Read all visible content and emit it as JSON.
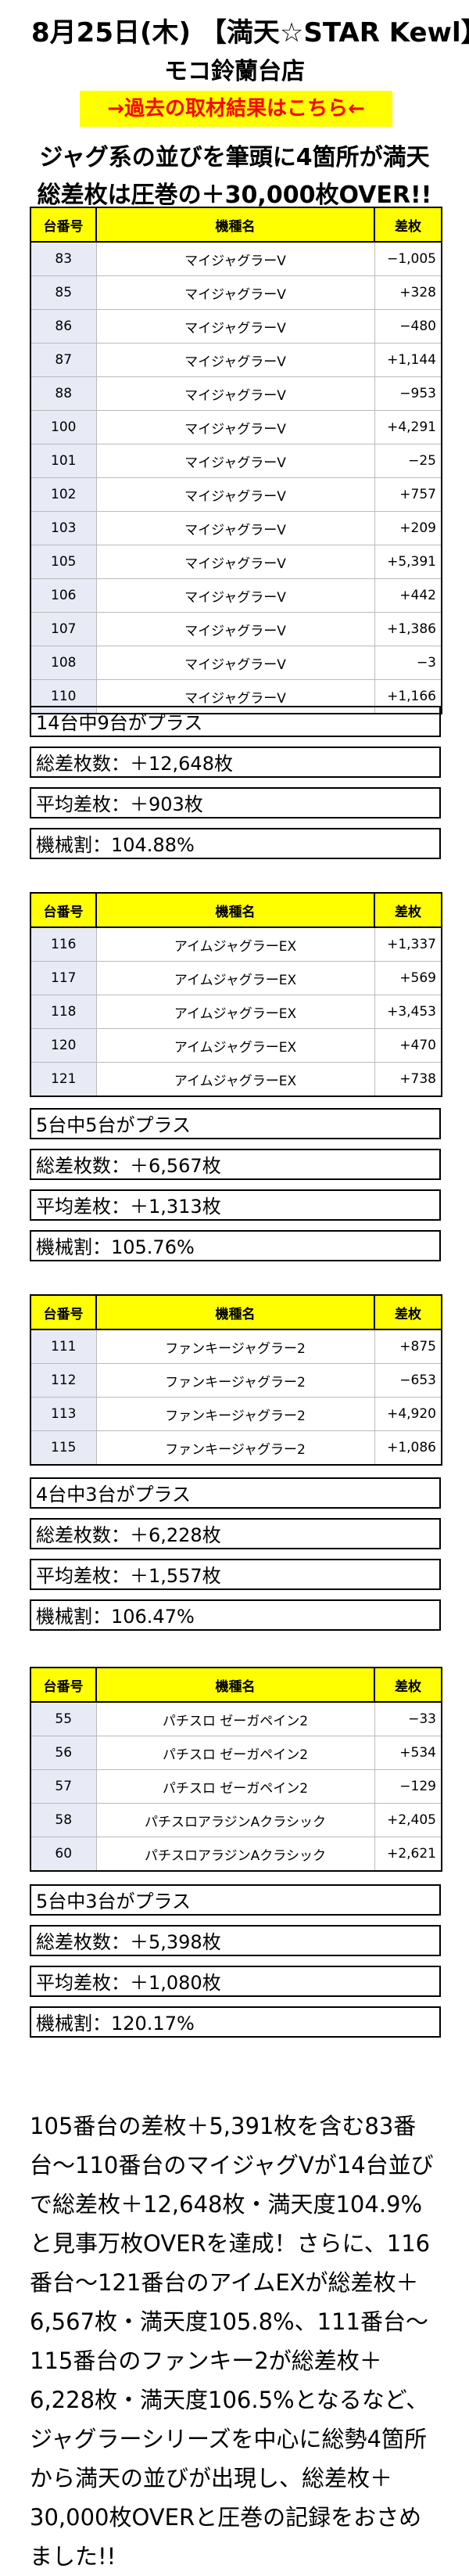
{
  "header": {
    "title": "8月25日(木) 【満天☆STAR Kewl】",
    "store": "モコ鈴蘭台店",
    "link": "→過去の取材結果はこちら←"
  },
  "lead": {
    "line1": "ジャグ系の並びを筆頭に4箇所が満天",
    "line2": "総差枚は圧巻の＋30,000枚OVER!!"
  },
  "column_headers": {
    "no": "台番号",
    "model": "機種名",
    "diff": "差枚"
  },
  "tables": [
    {
      "rows": [
        {
          "no": "83",
          "model": "マイジャグラーV",
          "diff": "−1,005"
        },
        {
          "no": "85",
          "model": "マイジャグラーV",
          "diff": "+328"
        },
        {
          "no": "86",
          "model": "マイジャグラーV",
          "diff": "−480"
        },
        {
          "no": "87",
          "model": "マイジャグラーV",
          "diff": "+1,144"
        },
        {
          "no": "88",
          "model": "マイジャグラーV",
          "diff": "−953"
        },
        {
          "no": "100",
          "model": "マイジャグラーV",
          "diff": "+4,291"
        },
        {
          "no": "101",
          "model": "マイジャグラーV",
          "diff": "−25"
        },
        {
          "no": "102",
          "model": "マイジャグラーV",
          "diff": "+757"
        },
        {
          "no": "103",
          "model": "マイジャグラーV",
          "diff": "+209"
        },
        {
          "no": "105",
          "model": "マイジャグラーV",
          "diff": "+5,391"
        },
        {
          "no": "106",
          "model": "マイジャグラーV",
          "diff": "+442"
        },
        {
          "no": "107",
          "model": "マイジャグラーV",
          "diff": "+1,386"
        },
        {
          "no": "108",
          "model": "マイジャグラーV",
          "diff": "−3"
        },
        {
          "no": "110",
          "model": "マイジャグラーV",
          "diff": "+1,166"
        }
      ],
      "stats": [
        "14台中9台がプラス",
        "総差枚数：＋12,648枚",
        "平均差枚：＋903枚",
        "機械割：104.88%"
      ]
    },
    {
      "rows": [
        {
          "no": "116",
          "model": "アイムジャグラーEX",
          "diff": "+1,337"
        },
        {
          "no": "117",
          "model": "アイムジャグラーEX",
          "diff": "+569"
        },
        {
          "no": "118",
          "model": "アイムジャグラーEX",
          "diff": "+3,453"
        },
        {
          "no": "120",
          "model": "アイムジャグラーEX",
          "diff": "+470"
        },
        {
          "no": "121",
          "model": "アイムジャグラーEX",
          "diff": "+738"
        }
      ],
      "stats": [
        "5台中5台がプラス",
        "総差枚数：＋6,567枚",
        "平均差枚：＋1,313枚",
        "機械割：105.76%"
      ]
    },
    {
      "rows": [
        {
          "no": "111",
          "model": "ファンキージャグラー2",
          "diff": "+875"
        },
        {
          "no": "112",
          "model": "ファンキージャグラー2",
          "diff": "−653"
        },
        {
          "no": "113",
          "model": "ファンキージャグラー2",
          "diff": "+4,920"
        },
        {
          "no": "115",
          "model": "ファンキージャグラー2",
          "diff": "+1,086"
        }
      ],
      "stats": [
        "4台中3台がプラス",
        "総差枚数：＋6,228枚",
        "平均差枚：＋1,557枚",
        "機械割：106.47%"
      ]
    },
    {
      "rows": [
        {
          "no": "55",
          "model": "パチスロ ゼーガペイン2",
          "diff": "−33"
        },
        {
          "no": "56",
          "model": "パチスロ ゼーガペイン2",
          "diff": "+534"
        },
        {
          "no": "57",
          "model": "パチスロ ゼーガペイン2",
          "diff": "−129"
        },
        {
          "no": "58",
          "model": "パチスロアラジンAクラシック",
          "diff": "+2,405"
        },
        {
          "no": "60",
          "model": "パチスロアラジンAクラシック",
          "diff": "+2,621"
        }
      ],
      "stats": [
        "5台中3台がプラス",
        "総差枚数：＋5,398枚",
        "平均差枚：＋1,080枚",
        "機械割：120.17%"
      ]
    }
  ],
  "summary": "105番台の差枚＋5,391枚を含む83番台〜110番台のマイジャグVが14台並びで総差枚＋12,648枚・満天度104.9%と見事万枚OVERを達成！さらに、116番台〜121番台のアイムEXが総差枚＋6,567枚・満天度105.8%、111番台〜115番台のファンキー2が総差枚＋6,228枚・満天度106.5%となるなど、ジャグラーシリーズを中心に総勢4箇所から満天の並びが出現し、総差枚＋30,000枚OVERと圧巻の記録をおさめました!!"
}
